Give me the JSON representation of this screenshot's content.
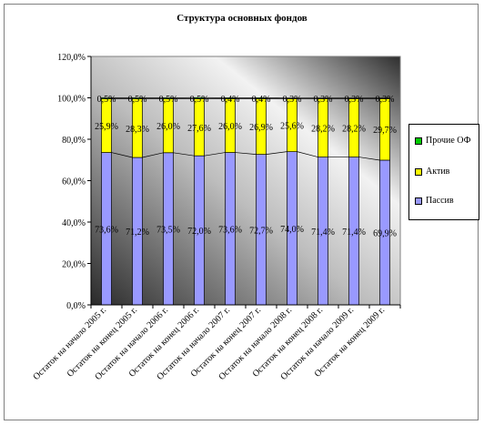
{
  "chart_data": {
    "type": "bar",
    "stacked": true,
    "title": "Структура основных фондов",
    "xlabel": "",
    "ylabel": "",
    "ylim": [
      0,
      120
    ],
    "yticks": [
      "0,0%",
      "20,0%",
      "40,0%",
      "60,0%",
      "80,0%",
      "100,0%",
      "120,0%"
    ],
    "grid": false,
    "legend_position": "right",
    "categories": [
      "Остаток на начало 2005 г.",
      "Остаток на конец 2005 г.",
      "Остаток на начало 2006 г.",
      "Остаток на конец 2006 г.",
      "Остаток на начало 2007 г.",
      "Остаток на конец 2007 г.",
      "Остаток на начало 2008 г.",
      "Остаток на конец 2008 г.",
      "Остаток на начало 2009 г.",
      "Остаток на конец 2009 г."
    ],
    "series": [
      {
        "name": "Пассив",
        "color": "#9999ff",
        "values": [
          73.6,
          71.2,
          73.5,
          72.0,
          73.6,
          72.7,
          74.0,
          71.4,
          71.4,
          69.9
        ],
        "labels": [
          "73,6%",
          "71,2%",
          "73,5%",
          "72,0%",
          "73,6%",
          "72,7%",
          "74,0%",
          "71,4%",
          "71,4%",
          "69,9%"
        ]
      },
      {
        "name": "Актив",
        "color": "#ffff00",
        "values": [
          25.9,
          28.3,
          26.0,
          27.6,
          26.0,
          26.9,
          25.6,
          28.2,
          28.2,
          29.7
        ],
        "labels": [
          "25,9%",
          "28,3%",
          "26,0%",
          "27,6%",
          "26,0%",
          "26,9%",
          "25,6%",
          "28,2%",
          "28,2%",
          "29,7%"
        ]
      },
      {
        "name": "Прочие ОФ",
        "color": "#00cc00",
        "values": [
          0.5,
          0.5,
          0.5,
          0.5,
          0.4,
          0.4,
          0.3,
          0.3,
          0.3,
          0.3
        ],
        "labels": [
          "0,5%",
          "0,5%",
          "0,5%",
          "0,5%",
          "0,4%",
          "0,4%",
          "0,3%",
          "0,3%",
          "0,3%",
          "0,3%"
        ]
      }
    ]
  },
  "legend": {
    "items": [
      {
        "label": "Прочие ОФ",
        "color": "#00cc00"
      },
      {
        "label": "Актив",
        "color": "#ffff00"
      },
      {
        "label": "Пассив",
        "color": "#9999ff"
      }
    ]
  }
}
